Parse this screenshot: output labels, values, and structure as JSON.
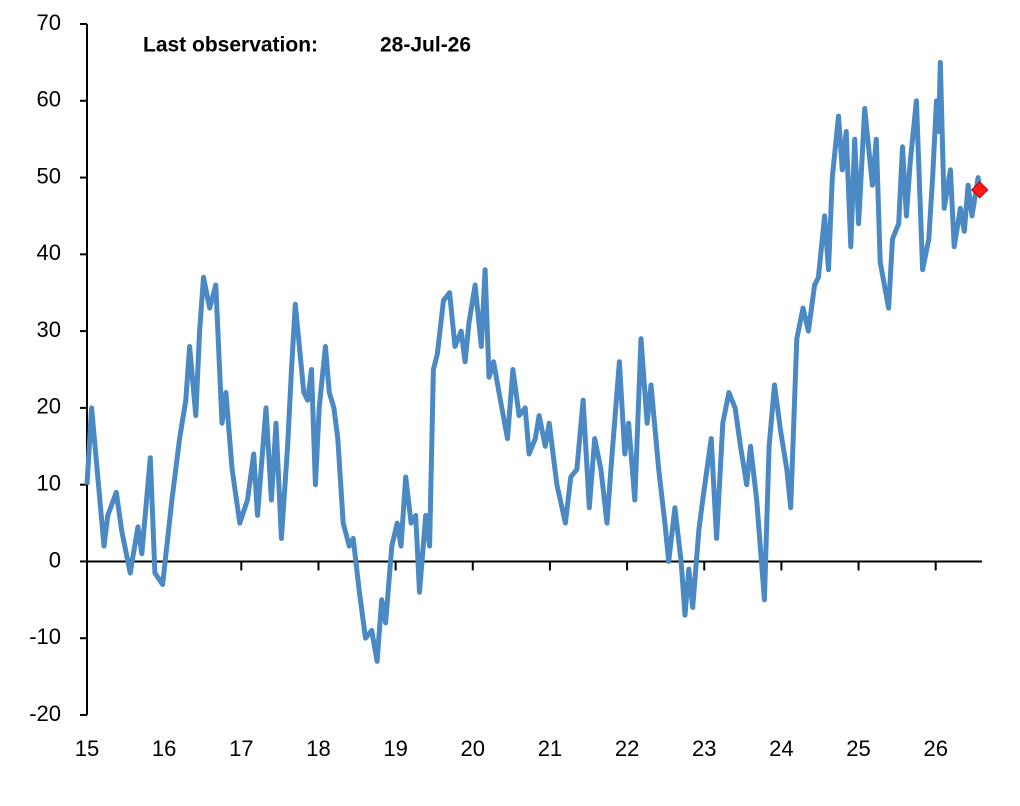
{
  "chart_data": {
    "type": "line",
    "annotations": [
      "Last observation:",
      "28-Jul-26"
    ],
    "x": [
      15.0,
      15.06,
      15.22,
      15.27,
      15.38,
      15.45,
      15.56,
      15.66,
      15.71,
      15.82,
      15.88,
      15.98,
      16.1,
      16.2,
      16.28,
      16.33,
      16.41,
      16.46,
      16.51,
      16.59,
      16.67,
      16.75,
      16.8,
      16.88,
      16.98,
      17.08,
      17.16,
      17.21,
      17.32,
      17.39,
      17.45,
      17.52,
      17.6,
      17.65,
      17.7,
      17.81,
      17.86,
      17.91,
      17.96,
      18.01,
      18.09,
      18.14,
      18.2,
      18.25,
      18.32,
      18.4,
      18.45,
      18.53,
      18.61,
      18.69,
      18.76,
      18.82,
      18.87,
      18.95,
      19.02,
      19.07,
      19.13,
      19.2,
      19.26,
      19.31,
      19.39,
      19.44,
      19.49,
      19.54,
      19.62,
      19.7,
      19.77,
      19.85,
      19.9,
      19.95,
      20.03,
      20.11,
      20.16,
      20.21,
      20.27,
      20.34,
      20.45,
      20.52,
      20.6,
      20.68,
      20.73,
      20.81,
      20.86,
      20.94,
      20.99,
      21.09,
      21.2,
      21.27,
      21.35,
      21.43,
      21.51,
      21.58,
      21.66,
      21.74,
      21.79,
      21.9,
      21.97,
      22.02,
      22.1,
      22.18,
      22.26,
      22.31,
      22.41,
      22.49,
      22.54,
      22.62,
      22.7,
      22.75,
      22.8,
      22.85,
      22.93,
      22.98,
      23.09,
      23.16,
      23.24,
      23.32,
      23.4,
      23.47,
      23.55,
      23.6,
      23.68,
      23.78,
      23.84,
      23.91,
      23.99,
      24.07,
      24.12,
      24.2,
      24.28,
      24.35,
      24.43,
      24.48,
      24.56,
      24.61,
      24.66,
      24.74,
      24.79,
      24.84,
      24.9,
      24.95,
      25.0,
      25.08,
      25.18,
      25.23,
      25.28,
      25.39,
      25.44,
      25.52,
      25.57,
      25.62,
      25.67,
      25.75,
      25.83,
      25.91,
      25.96,
      26.01,
      26.04,
      26.06,
      26.11,
      26.19,
      26.24,
      26.32,
      26.37,
      26.42,
      26.47,
      26.55,
      26.57
    ],
    "values": [
      10,
      20,
      2,
      6,
      9,
      4,
      -1.5,
      4.5,
      1,
      13.5,
      -1.5,
      -3,
      8,
      16,
      21,
      28,
      19,
      30,
      37,
      33,
      36,
      18,
      22,
      12,
      5,
      8,
      14,
      6,
      20,
      8,
      18,
      3,
      15,
      25,
      33.5,
      22,
      21,
      25,
      10,
      20,
      28,
      22,
      20,
      16,
      5,
      2,
      3,
      -4,
      -10,
      -9,
      -13,
      -5,
      -8,
      2,
      5,
      2,
      11,
      5,
      6,
      -4,
      6,
      2,
      25,
      27,
      34,
      35,
      28,
      30,
      26,
      31,
      36,
      28,
      38,
      24,
      26,
      22,
      16,
      25,
      19,
      20,
      14,
      16,
      19,
      15,
      18,
      10,
      5,
      11,
      12,
      21,
      7,
      16,
      12,
      5,
      12,
      26,
      14,
      18,
      8,
      29,
      18,
      23,
      12,
      5,
      0,
      7,
      0,
      -7,
      -1,
      -6,
      4,
      8,
      16,
      3,
      18,
      22,
      20,
      15,
      10,
      15,
      8,
      -5,
      15,
      23,
      17,
      12,
      7,
      29,
      33,
      30,
      36,
      37,
      45,
      38,
      50,
      58,
      51,
      56,
      41,
      55,
      44,
      59,
      49,
      55,
      39,
      33,
      42,
      44,
      54,
      45,
      52,
      60,
      38,
      42,
      50,
      60,
      56,
      65,
      46,
      51,
      41,
      46,
      43,
      49,
      45,
      50,
      48.4
    ],
    "color": "#4a89c3",
    "marker_color": "#ff1a1a",
    "xlim": [
      15,
      26.6
    ],
    "xticks": [
      15,
      16,
      17,
      18,
      19,
      20,
      21,
      22,
      23,
      24,
      25,
      26
    ],
    "ylim": [
      -20,
      70
    ],
    "yticks": [
      -20,
      -10,
      0,
      10,
      20,
      30,
      40,
      50,
      60,
      70
    ]
  }
}
